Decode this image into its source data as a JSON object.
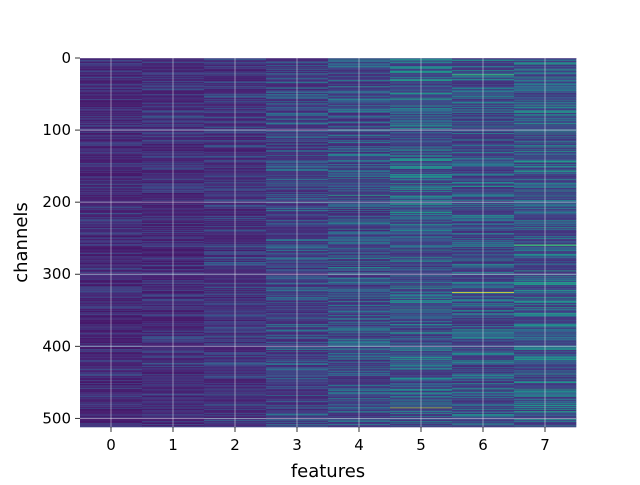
{
  "chart_data": {
    "type": "heatmap",
    "title": "",
    "xlabel": "features",
    "ylabel": "channels",
    "x_ticks": [
      "0",
      "1",
      "2",
      "3",
      "4",
      "5",
      "6",
      "7"
    ],
    "y_ticks": [
      "0",
      "100",
      "200",
      "300",
      "400",
      "500"
    ],
    "y_tick_values": [
      0,
      100,
      200,
      300,
      400,
      500
    ],
    "n_features": 8,
    "n_channels": 512,
    "ylim": [
      0,
      512
    ],
    "y_inverted": true,
    "grid": true,
    "colormap": "viridis",
    "column_mean_level": [
      0.12,
      0.13,
      0.15,
      0.2,
      0.22,
      0.26,
      0.24,
      0.27
    ],
    "highlights": [
      {
        "feature": 6,
        "channel": 325,
        "level": 1.0
      },
      {
        "feature": 5,
        "channel": 485,
        "level": 0.85
      },
      {
        "feature": 7,
        "channel": 259,
        "level": 0.75
      },
      {
        "feature": 6,
        "channel": 23,
        "level": 0.7
      },
      {
        "feature": 5,
        "channel": 30,
        "level": 0.6
      },
      {
        "feature": 4,
        "channel": 190,
        "level": 0.6
      }
    ]
  }
}
